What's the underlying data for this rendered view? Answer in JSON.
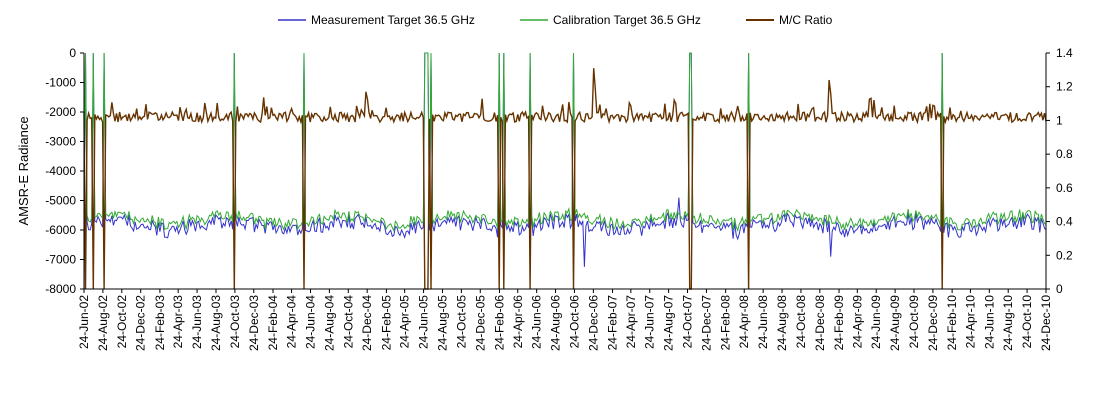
{
  "chart_data": {
    "type": "line",
    "ylabel": "AMSR-E Radiance",
    "y_left": {
      "min": -8000,
      "max": 0,
      "ticks": [
        "0",
        "-1000",
        "-2000",
        "-3000",
        "-4000",
        "-5000",
        "-6000",
        "-7000",
        "-8000"
      ]
    },
    "y_right": {
      "min": 0,
      "max": 1.4,
      "ticks": [
        "1.4",
        "1.2",
        "1",
        "0.8",
        "0.6",
        "0.4",
        "0.2",
        "0"
      ]
    },
    "x_range": [
      "2002-06-24",
      "2010-12-24"
    ],
    "x_tick_labels": [
      "24-Jun-02",
      "24-Aug-02",
      "24-Oct-02",
      "24-Dec-02",
      "24-Feb-03",
      "24-Apr-03",
      "24-Jun-03",
      "24-Aug-03",
      "24-Oct-03",
      "24-Dec-03",
      "24-Feb-04",
      "24-Apr-04",
      "24-Jun-04",
      "24-Aug-04",
      "24-Oct-04",
      "24-Dec-04",
      "24-Feb-05",
      "24-Apr-05",
      "24-Jun-05",
      "24-Aug-05",
      "24-Oct-05",
      "24-Dec-05",
      "24-Feb-06",
      "24-Apr-06",
      "24-Jun-06",
      "24-Aug-06",
      "24-Oct-06",
      "24-Dec-06",
      "24-Feb-07",
      "24-Apr-07",
      "24-Jun-07",
      "24-Aug-07",
      "24-Oct-07",
      "24-Dec-07",
      "24-Feb-08",
      "24-Apr-08",
      "24-Jun-08",
      "24-Aug-08",
      "24-Oct-08",
      "24-Dec-08",
      "24-Feb-09",
      "24-Apr-09",
      "24-Jun-09",
      "24-Aug-09",
      "24-Oct-09",
      "24-Dec-09",
      "24-Feb-10",
      "24-Apr-10",
      "24-Jun-10",
      "24-Aug-10",
      "24-Oct-10",
      "24-Dec-10"
    ],
    "legend_position": "top",
    "grid": false,
    "series": [
      {
        "name": "Measurement Target 36.5 GHz",
        "axis": "left",
        "color": "#3333cc",
        "baseline": -5850,
        "amplitude": 250
      },
      {
        "name": "Calibration Target 36.5 GHz",
        "axis": "left",
        "color": "#33aa33",
        "baseline": -5650,
        "amplitude": 200
      },
      {
        "name": "M/C Ratio",
        "axis": "right",
        "color": "#663300",
        "baseline": 1.02,
        "amplitude": 0.03
      }
    ],
    "gaps": [
      "2002-06-28",
      "2002-07-25",
      "2002-08-26",
      "2003-10-23",
      "2004-06-02",
      "2005-06-26",
      "2005-07-01",
      "2005-07-09",
      "2005-07-16",
      "2006-02-23",
      "2006-03-08",
      "2006-06-02",
      "2006-10-20",
      "2007-11-01",
      "2007-11-05",
      "2008-05-08",
      "2010-01-22"
    ],
    "spikes": [
      {
        "date": "2004-12-22",
        "ratio": 1.17
      },
      {
        "date": "2006-12-24",
        "ratio": 1.31
      },
      {
        "date": "2009-01-24",
        "ratio": 1.24
      },
      {
        "date": "2007-09-10",
        "ratio": 1.12
      },
      {
        "date": "2009-12-22",
        "ratio": 1.09
      }
    ],
    "dips": [
      {
        "date": "2006-11-24",
        "measurement": -7250
      },
      {
        "date": "2009-01-28",
        "measurement": -6900
      },
      {
        "date": "2007-09-25",
        "measurement": -4900
      }
    ]
  }
}
